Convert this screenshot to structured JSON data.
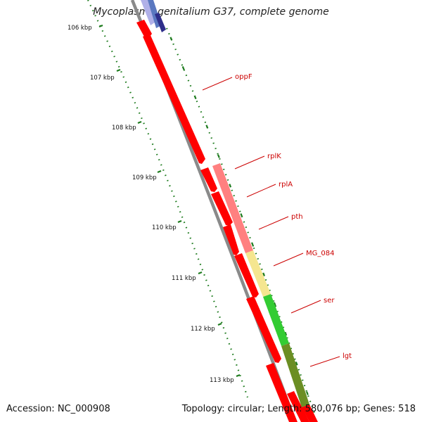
{
  "title": "Mycoplasma genitalium G37, complete genome",
  "footer": {
    "accession": "Accession: NC_000908",
    "summary": "Topology: circular; Length: 580,076 bp; Genes: 518"
  },
  "colors": {
    "background": "#ffffff",
    "backbone": "#808080",
    "tick": "#1e7b1e",
    "gene_label": "#cc0000",
    "forward_strand": "#ff0000"
  },
  "scale": {
    "labels": [
      "106 kbp",
      "107 kbp",
      "108 kbp",
      "109 kbp",
      "110 kbp",
      "111 kbp",
      "112 kbp",
      "113 kbp"
    ]
  },
  "genes": [
    {
      "name": "oppF",
      "color": "#ff8080"
    },
    {
      "name": "rplK",
      "color": "#ff8080"
    },
    {
      "name": "rplA",
      "color": "#ff8080"
    },
    {
      "name": "pth",
      "color": "#ff8080"
    },
    {
      "name": "MG_084",
      "color": "#f5e690"
    },
    {
      "name": "ser",
      "color": "#33cc33"
    },
    {
      "name": "lgt",
      "color": "#6b8e23"
    }
  ],
  "upper_segment_colors": [
    "#b0b0e8",
    "#5a78c0",
    "#2e2e8a"
  ]
}
